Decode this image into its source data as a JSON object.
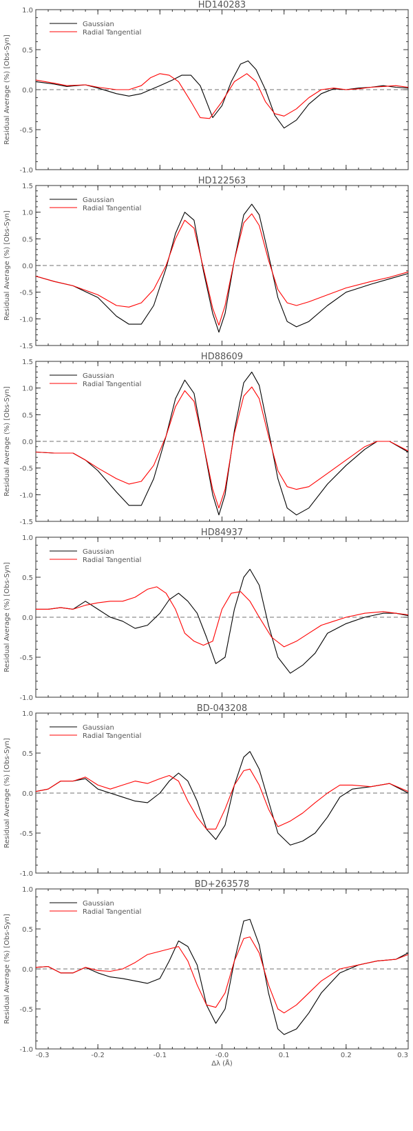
{
  "chart_data": [
    {
      "type": "line",
      "title": "HD140283",
      "xlabel": "",
      "ylabel": "Residual Average (%) [Obs-Syn]",
      "xlim": [
        -0.3,
        0.3
      ],
      "ylim": [
        -1.0,
        1.0
      ],
      "yticks": [
        "1.0",
        "0.5",
        "0.0",
        "-0.5",
        "-1.0"
      ],
      "grid": false,
      "legend_position": "top-left",
      "reference_line": 0,
      "series": [
        {
          "name": "Gaussian",
          "color": "#000000",
          "x": [
            -0.3,
            -0.27,
            -0.25,
            -0.22,
            -0.2,
            -0.17,
            -0.15,
            -0.13,
            -0.1,
            -0.08,
            -0.065,
            -0.05,
            -0.035,
            -0.025,
            -0.015,
            0.0,
            0.015,
            0.03,
            0.042,
            0.055,
            0.07,
            0.085,
            0.1,
            0.12,
            0.14,
            0.16,
            0.18,
            0.2,
            0.22,
            0.24,
            0.26,
            0.28,
            0.3
          ],
          "y": [
            0.1,
            0.07,
            0.04,
            0.06,
            0.02,
            -0.05,
            -0.08,
            -0.05,
            0.05,
            0.12,
            0.18,
            0.18,
            0.05,
            -0.15,
            -0.35,
            -0.2,
            0.1,
            0.32,
            0.36,
            0.25,
            0.0,
            -0.32,
            -0.48,
            -0.38,
            -0.18,
            -0.05,
            0.01,
            0.0,
            0.02,
            0.03,
            0.05,
            0.03,
            0.02
          ]
        },
        {
          "name": "Radial Tangential",
          "color": "#ff0000",
          "x": [
            -0.3,
            -0.27,
            -0.25,
            -0.22,
            -0.2,
            -0.17,
            -0.15,
            -0.13,
            -0.115,
            -0.1,
            -0.085,
            -0.07,
            -0.05,
            -0.035,
            -0.02,
            0.0,
            0.02,
            0.04,
            0.055,
            0.07,
            0.085,
            0.1,
            0.12,
            0.14,
            0.16,
            0.18,
            0.2,
            0.22,
            0.24,
            0.26,
            0.28,
            0.3
          ],
          "y": [
            0.12,
            0.08,
            0.05,
            0.06,
            0.03,
            0.0,
            0.0,
            0.05,
            0.15,
            0.2,
            0.18,
            0.1,
            -0.15,
            -0.35,
            -0.36,
            -0.15,
            0.1,
            0.2,
            0.1,
            -0.15,
            -0.3,
            -0.33,
            -0.24,
            -0.1,
            0.0,
            0.02,
            0.0,
            0.01,
            0.03,
            0.04,
            0.05,
            0.03
          ]
        }
      ]
    },
    {
      "type": "line",
      "title": "HD122563",
      "xlabel": "",
      "ylabel": "Residual Average (%) [Obs-Syn]",
      "xlim": [
        -0.3,
        0.3
      ],
      "ylim": [
        -1.5,
        1.5
      ],
      "yticks": [
        "1.5",
        "1.0",
        "0.5",
        "0.0",
        "-0.5",
        "-1.0",
        "-1.5"
      ],
      "grid": false,
      "legend_position": "top-left",
      "reference_line": 0,
      "series": [
        {
          "name": "Gaussian",
          "color": "#000000",
          "x": [
            -0.3,
            -0.27,
            -0.24,
            -0.2,
            -0.17,
            -0.15,
            -0.13,
            -0.11,
            -0.09,
            -0.075,
            -0.06,
            -0.045,
            -0.03,
            -0.015,
            -0.005,
            0.005,
            0.02,
            0.035,
            0.048,
            0.06,
            0.075,
            0.09,
            0.105,
            0.12,
            0.14,
            0.17,
            0.2,
            0.24,
            0.27,
            0.3
          ],
          "y": [
            -0.2,
            -0.3,
            -0.38,
            -0.6,
            -0.95,
            -1.1,
            -1.1,
            -0.75,
            -0.05,
            0.6,
            1.0,
            0.85,
            -0.1,
            -0.9,
            -1.25,
            -0.9,
            0.1,
            0.95,
            1.15,
            0.95,
            0.2,
            -0.6,
            -1.05,
            -1.15,
            -1.05,
            -0.75,
            -0.5,
            -0.35,
            -0.25,
            -0.15
          ]
        },
        {
          "name": "Radial Tangential",
          "color": "#ff0000",
          "x": [
            -0.3,
            -0.27,
            -0.24,
            -0.2,
            -0.17,
            -0.15,
            -0.13,
            -0.11,
            -0.09,
            -0.075,
            -0.06,
            -0.045,
            -0.03,
            -0.015,
            -0.005,
            0.005,
            0.02,
            0.035,
            0.048,
            0.06,
            0.075,
            0.09,
            0.105,
            0.12,
            0.14,
            0.17,
            0.2,
            0.24,
            0.27,
            0.3
          ],
          "y": [
            -0.2,
            -0.3,
            -0.38,
            -0.55,
            -0.75,
            -0.78,
            -0.7,
            -0.45,
            0.0,
            0.5,
            0.85,
            0.7,
            -0.05,
            -0.8,
            -1.12,
            -0.75,
            0.1,
            0.8,
            0.97,
            0.75,
            0.1,
            -0.45,
            -0.7,
            -0.75,
            -0.68,
            -0.55,
            -0.42,
            -0.3,
            -0.22,
            -0.12
          ]
        }
      ]
    },
    {
      "type": "line",
      "title": "HD88609",
      "xlabel": "",
      "ylabel": "Residual Average (%) [Obs-Syn]",
      "xlim": [
        -0.3,
        0.3
      ],
      "ylim": [
        -1.5,
        1.5
      ],
      "yticks": [
        "1.5",
        "1.0",
        "0.5",
        "0.0",
        "-0.5",
        "-1.0",
        "-1.5"
      ],
      "grid": false,
      "legend_position": "top-left",
      "reference_line": 0,
      "series": [
        {
          "name": "Gaussian",
          "color": "#000000",
          "x": [
            -0.3,
            -0.27,
            -0.24,
            -0.22,
            -0.2,
            -0.17,
            -0.15,
            -0.13,
            -0.11,
            -0.09,
            -0.075,
            -0.06,
            -0.045,
            -0.03,
            -0.015,
            -0.005,
            0.005,
            0.02,
            0.035,
            0.048,
            0.06,
            0.075,
            0.09,
            0.105,
            0.12,
            0.14,
            0.17,
            0.2,
            0.23,
            0.25,
            0.27,
            0.3
          ],
          "y": [
            -0.2,
            -0.22,
            -0.22,
            -0.35,
            -0.55,
            -0.95,
            -1.2,
            -1.2,
            -0.7,
            0.1,
            0.8,
            1.15,
            0.9,
            -0.05,
            -1.0,
            -1.38,
            -1.0,
            0.2,
            1.1,
            1.3,
            1.05,
            0.2,
            -0.7,
            -1.25,
            -1.38,
            -1.25,
            -0.8,
            -0.45,
            -0.15,
            0.0,
            0.0,
            -0.2
          ]
        },
        {
          "name": "Radial Tangential",
          "color": "#ff0000",
          "x": [
            -0.3,
            -0.27,
            -0.24,
            -0.22,
            -0.2,
            -0.17,
            -0.15,
            -0.13,
            -0.11,
            -0.09,
            -0.075,
            -0.06,
            -0.045,
            -0.03,
            -0.015,
            -0.005,
            0.005,
            0.02,
            0.035,
            0.048,
            0.06,
            0.075,
            0.09,
            0.105,
            0.12,
            0.14,
            0.17,
            0.2,
            0.23,
            0.25,
            0.27,
            0.3
          ],
          "y": [
            -0.2,
            -0.22,
            -0.22,
            -0.35,
            -0.5,
            -0.7,
            -0.8,
            -0.75,
            -0.45,
            0.1,
            0.65,
            0.95,
            0.75,
            -0.05,
            -0.9,
            -1.25,
            -0.9,
            0.15,
            0.85,
            1.02,
            0.8,
            0.1,
            -0.55,
            -0.85,
            -0.9,
            -0.85,
            -0.6,
            -0.35,
            -0.1,
            0.0,
            0.0,
            -0.18
          ]
        }
      ]
    },
    {
      "type": "line",
      "title": "HD84937",
      "xlabel": "",
      "ylabel": "Residual Average (%) [Obs-Syn]",
      "xlim": [
        -0.3,
        0.3
      ],
      "ylim": [
        -1.0,
        1.0
      ],
      "yticks": [
        "1.0",
        "0.5",
        "0.0",
        "-0.5",
        "-1.0"
      ],
      "grid": false,
      "legend_position": "top-left",
      "reference_line": 0,
      "series": [
        {
          "name": "Gaussian",
          "color": "#000000",
          "x": [
            -0.3,
            -0.28,
            -0.26,
            -0.24,
            -0.22,
            -0.2,
            -0.18,
            -0.16,
            -0.14,
            -0.12,
            -0.1,
            -0.085,
            -0.07,
            -0.055,
            -0.04,
            -0.025,
            -0.01,
            0.005,
            0.02,
            0.035,
            0.045,
            0.06,
            0.075,
            0.09,
            0.11,
            0.13,
            0.15,
            0.17,
            0.2,
            0.23,
            0.26,
            0.28,
            0.3
          ],
          "y": [
            0.1,
            0.1,
            0.12,
            0.1,
            0.2,
            0.1,
            0.0,
            -0.05,
            -0.14,
            -0.1,
            0.05,
            0.22,
            0.3,
            0.2,
            0.05,
            -0.25,
            -0.58,
            -0.5,
            0.1,
            0.5,
            0.6,
            0.4,
            -0.1,
            -0.5,
            -0.7,
            -0.6,
            -0.45,
            -0.2,
            -0.08,
            0.0,
            0.05,
            0.05,
            0.02
          ]
        },
        {
          "name": "Radial Tangential",
          "color": "#ff0000",
          "x": [
            -0.3,
            -0.28,
            -0.26,
            -0.24,
            -0.22,
            -0.2,
            -0.18,
            -0.16,
            -0.14,
            -0.12,
            -0.105,
            -0.09,
            -0.075,
            -0.06,
            -0.045,
            -0.03,
            -0.015,
            0.0,
            0.015,
            0.03,
            0.045,
            0.06,
            0.08,
            0.1,
            0.12,
            0.14,
            0.16,
            0.18,
            0.2,
            0.23,
            0.26,
            0.28,
            0.3
          ],
          "y": [
            0.1,
            0.1,
            0.12,
            0.1,
            0.15,
            0.18,
            0.2,
            0.2,
            0.25,
            0.35,
            0.38,
            0.3,
            0.1,
            -0.2,
            -0.3,
            -0.35,
            -0.3,
            0.1,
            0.3,
            0.32,
            0.2,
            0.0,
            -0.25,
            -0.37,
            -0.3,
            -0.2,
            -0.1,
            -0.05,
            0.0,
            0.05,
            0.07,
            0.05,
            0.03
          ]
        }
      ]
    },
    {
      "type": "line",
      "title": "BD-043208",
      "xlabel": "",
      "ylabel": "Residual Average (%) [Obs-Syn]",
      "xlim": [
        -0.3,
        0.3
      ],
      "ylim": [
        -1.0,
        1.0
      ],
      "yticks": [
        "1.0",
        "0.5",
        "0.0",
        "-0.5",
        "-1.0"
      ],
      "grid": false,
      "legend_position": "top-left",
      "reference_line": 0,
      "series": [
        {
          "name": "Gaussian",
          "color": "#000000",
          "x": [
            -0.3,
            -0.28,
            -0.26,
            -0.24,
            -0.22,
            -0.2,
            -0.18,
            -0.16,
            -0.14,
            -0.12,
            -0.1,
            -0.085,
            -0.07,
            -0.055,
            -0.04,
            -0.025,
            -0.01,
            0.005,
            0.02,
            0.035,
            0.045,
            0.06,
            0.075,
            0.09,
            0.11,
            0.13,
            0.15,
            0.17,
            0.19,
            0.21,
            0.24,
            0.27,
            0.3
          ],
          "y": [
            0.02,
            0.05,
            0.15,
            0.15,
            0.18,
            0.05,
            0.0,
            -0.05,
            -0.1,
            -0.12,
            0.0,
            0.15,
            0.25,
            0.15,
            -0.1,
            -0.45,
            -0.58,
            -0.4,
            0.1,
            0.45,
            0.52,
            0.3,
            -0.1,
            -0.5,
            -0.65,
            -0.6,
            -0.5,
            -0.3,
            -0.05,
            0.05,
            0.08,
            0.12,
            0.0
          ]
        },
        {
          "name": "Radial Tangential",
          "color": "#ff0000",
          "x": [
            -0.3,
            -0.28,
            -0.26,
            -0.24,
            -0.22,
            -0.2,
            -0.18,
            -0.16,
            -0.14,
            -0.12,
            -0.1,
            -0.085,
            -0.07,
            -0.055,
            -0.04,
            -0.025,
            -0.01,
            0.005,
            0.02,
            0.035,
            0.045,
            0.06,
            0.075,
            0.09,
            0.11,
            0.13,
            0.15,
            0.17,
            0.19,
            0.21,
            0.24,
            0.27,
            0.3
          ],
          "y": [
            0.02,
            0.05,
            0.15,
            0.15,
            0.2,
            0.1,
            0.05,
            0.1,
            0.15,
            0.12,
            0.18,
            0.22,
            0.15,
            -0.1,
            -0.3,
            -0.45,
            -0.45,
            -0.2,
            0.1,
            0.28,
            0.3,
            0.1,
            -0.2,
            -0.42,
            -0.35,
            -0.25,
            -0.12,
            0.0,
            0.1,
            0.1,
            0.08,
            0.12,
            0.02
          ]
        }
      ]
    },
    {
      "type": "line",
      "title": "BD+263578",
      "xlabel": "Δλ (Å)",
      "ylabel": "Residual Average (%) [Obs-Syn]",
      "xlim": [
        -0.3,
        0.3
      ],
      "ylim": [
        -1.0,
        1.0
      ],
      "yticks": [
        "1.0",
        "0.5",
        "0.0",
        "-0.5",
        "-1.0"
      ],
      "xticks": [
        "-0.3",
        "-0.2",
        "-0.1",
        "-0.0",
        "0.1",
        "0.2",
        "0.3"
      ],
      "grid": false,
      "legend_position": "top-left",
      "reference_line": 0,
      "series": [
        {
          "name": "Gaussian",
          "color": "#000000",
          "x": [
            -0.3,
            -0.28,
            -0.26,
            -0.24,
            -0.22,
            -0.2,
            -0.18,
            -0.16,
            -0.14,
            -0.12,
            -0.1,
            -0.085,
            -0.07,
            -0.055,
            -0.04,
            -0.025,
            -0.01,
            0.005,
            0.02,
            0.035,
            0.045,
            0.06,
            0.075,
            0.09,
            0.1,
            0.12,
            0.14,
            0.16,
            0.19,
            0.22,
            0.25,
            0.28,
            0.3
          ],
          "y": [
            0.02,
            0.03,
            -0.05,
            -0.05,
            0.02,
            -0.05,
            -0.1,
            -0.12,
            -0.15,
            -0.18,
            -0.12,
            0.1,
            0.35,
            0.28,
            0.05,
            -0.45,
            -0.68,
            -0.5,
            0.1,
            0.6,
            0.62,
            0.3,
            -0.3,
            -0.75,
            -0.82,
            -0.75,
            -0.55,
            -0.3,
            -0.05,
            0.05,
            0.1,
            0.12,
            0.2
          ]
        },
        {
          "name": "Radial Tangential",
          "color": "#ff0000",
          "x": [
            -0.3,
            -0.28,
            -0.26,
            -0.24,
            -0.22,
            -0.2,
            -0.18,
            -0.16,
            -0.14,
            -0.12,
            -0.1,
            -0.085,
            -0.07,
            -0.055,
            -0.04,
            -0.025,
            -0.01,
            0.005,
            0.02,
            0.035,
            0.045,
            0.06,
            0.075,
            0.09,
            0.1,
            0.12,
            0.14,
            0.16,
            0.19,
            0.22,
            0.25,
            0.28,
            0.3
          ],
          "y": [
            0.02,
            0.03,
            -0.05,
            -0.05,
            0.02,
            -0.02,
            -0.03,
            0.0,
            0.08,
            0.18,
            0.22,
            0.25,
            0.28,
            0.1,
            -0.2,
            -0.45,
            -0.48,
            -0.3,
            0.1,
            0.38,
            0.4,
            0.2,
            -0.2,
            -0.5,
            -0.55,
            -0.45,
            -0.3,
            -0.15,
            0.0,
            0.05,
            0.1,
            0.12,
            0.18
          ]
        }
      ]
    }
  ]
}
